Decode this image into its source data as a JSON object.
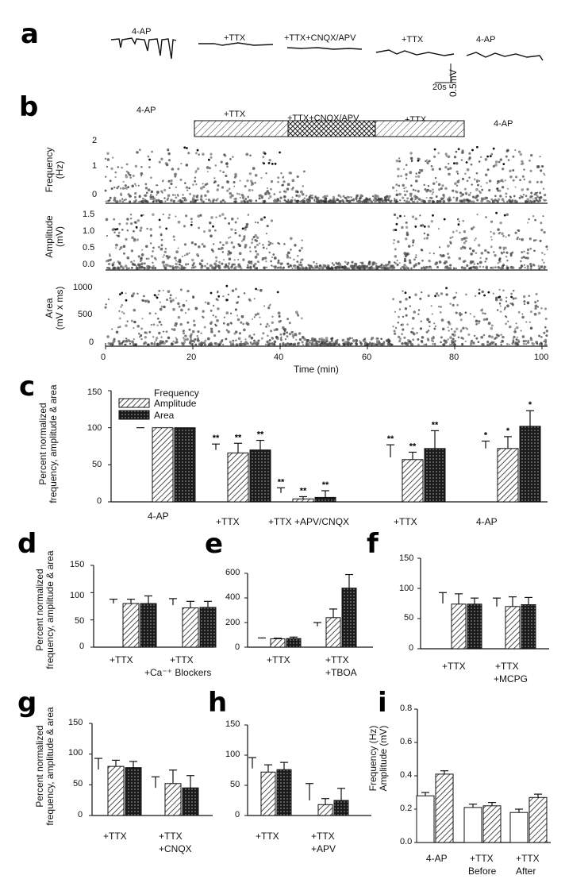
{
  "panels": [
    "a",
    "b",
    "c",
    "d",
    "e",
    "f",
    "g",
    "h",
    "i"
  ],
  "a": {
    "conditions": [
      "4-AP",
      "+TTX",
      "+TTX+CNQX/APV",
      "+TTX",
      "4-AP"
    ],
    "scale_y": "0.5mV",
    "scale_x": "20s"
  },
  "b": {
    "conditions": [
      "4-AP",
      "+TTX",
      "+TTX+CNQX/APV",
      "+TTX",
      "4-AP"
    ],
    "freq_label": "Frequency",
    "freq_unit": "(Hz)",
    "freq_ticks": [
      "2",
      "1",
      "0"
    ],
    "amp_label": "Amplitude",
    "amp_unit": "(mV)",
    "amp_ticks": [
      "1.5",
      "1.0",
      "0.5",
      "0.0"
    ],
    "area_label": "Area",
    "area_unit": "(mV x ms)",
    "area_ticks": [
      "1000",
      "500",
      "0"
    ],
    "xlabel": "Time (min)",
    "xticks": [
      "0",
      "20",
      "40",
      "60",
      "80",
      "100"
    ]
  },
  "c": {
    "ylabel1": "Percent normalized",
    "ylabel2": "frequency, amplitude & area",
    "yticks": [
      "150",
      "100",
      "50",
      "0"
    ],
    "legend": [
      "Frequency",
      "Amplitude",
      "Area"
    ],
    "categories": [
      "4-AP",
      "+TTX",
      "+TTX +APV/CNQX",
      "+TTX",
      "4-AP"
    ],
    "sig": [
      [
        "",
        "",
        ""
      ],
      [
        "**",
        "**",
        "**"
      ],
      [
        "**",
        "**",
        "**"
      ],
      [
        "**",
        "**",
        "**"
      ],
      [
        "*",
        "*",
        "*"
      ]
    ]
  },
  "d": {
    "ylabel1": "Percent normalized",
    "ylabel2": "frequency, amplitude & area",
    "yticks": [
      "150",
      "100",
      "50",
      "0"
    ],
    "cat1": "+TTX",
    "cat2a": "+TTX",
    "cat2b": "+Ca⁻⁺ Blockers"
  },
  "e": {
    "yticks": [
      "600",
      "400",
      "200",
      "0"
    ],
    "cat1": "+TTX",
    "cat2a": "+TTX",
    "cat2b": "+TBOA"
  },
  "f": {
    "yticks": [
      "150",
      "100",
      "50",
      "0"
    ],
    "cat1": "+TTX",
    "cat2a": "+TTX",
    "cat2b": "+MCPG"
  },
  "g": {
    "ylabel1": "Percent normalized",
    "ylabel2": "frequency, amplitude & area",
    "yticks": [
      "150",
      "100",
      "50",
      "0"
    ],
    "cat1": "+TTX",
    "cat2a": "+TTX",
    "cat2b": "+CNQX"
  },
  "h": {
    "yticks": [
      "150",
      "100",
      "50",
      "0"
    ],
    "cat1": "+TTX",
    "cat2a": "+TTX",
    "cat2b": "+APV"
  },
  "i": {
    "ylabel1": "Frequency (Hz)",
    "ylabel2": "Amplitude (mV)",
    "yticks": [
      "0.8",
      "0.6",
      "0.4",
      "0.2",
      "0.0"
    ],
    "cat1": "4-AP",
    "cat2a": "+TTX",
    "cat2b": "Before",
    "cat3a": "+TTX",
    "cat3b": "After"
  },
  "chart_data": [
    {
      "panel": "c",
      "type": "bar",
      "categories": [
        "4-AP",
        "+TTX",
        "+TTX +APV/CNQX",
        "+TTX",
        "4-AP"
      ],
      "ylim": [
        0,
        150
      ],
      "series": [
        {
          "name": "Frequency",
          "values": [
            100,
            70,
            12,
            60,
            72
          ],
          "errors": [
            0,
            8,
            7,
            17,
            10
          ]
        },
        {
          "name": "Amplitude",
          "values": [
            100,
            66,
            4,
            57,
            72
          ],
          "errors": [
            0,
            13,
            3,
            10,
            16
          ]
        },
        {
          "name": "Area",
          "values": [
            100,
            70,
            6,
            72,
            102
          ],
          "errors": [
            0,
            13,
            9,
            24,
            21
          ]
        }
      ]
    },
    {
      "panel": "d",
      "type": "bar",
      "categories": [
        "+TTX",
        "+TTX +Ca Blockers"
      ],
      "ylim": [
        0,
        150
      ],
      "series": [
        {
          "name": "Frequency",
          "values": [
            80,
            77
          ],
          "errors": [
            8,
            12
          ]
        },
        {
          "name": "Amplitude",
          "values": [
            80,
            72
          ],
          "errors": [
            8,
            12
          ]
        },
        {
          "name": "Area",
          "values": [
            80,
            73
          ],
          "errors": [
            14,
            11
          ]
        }
      ]
    },
    {
      "panel": "e",
      "type": "bar",
      "categories": [
        "+TTX",
        "+TTX +TBOA"
      ],
      "ylim": [
        0,
        600
      ],
      "series": [
        {
          "name": "Frequency",
          "values": [
            70,
            170
          ],
          "errors": [
            5,
            30
          ]
        },
        {
          "name": "Amplitude",
          "values": [
            68,
            240
          ],
          "errors": [
            5,
            70
          ]
        },
        {
          "name": "Area",
          "values": [
            70,
            480
          ],
          "errors": [
            12,
            110
          ]
        }
      ]
    },
    {
      "panel": "f",
      "type": "bar",
      "categories": [
        "+TTX",
        "+TTX +MCPG"
      ],
      "ylim": [
        0,
        150
      ],
      "series": [
        {
          "name": "Frequency",
          "values": [
            75,
            70
          ],
          "errors": [
            18,
            14
          ]
        },
        {
          "name": "Amplitude",
          "values": [
            74,
            70
          ],
          "errors": [
            17,
            16
          ]
        },
        {
          "name": "Area",
          "values": [
            74,
            73
          ],
          "errors": [
            10,
            12
          ]
        }
      ]
    },
    {
      "panel": "g",
      "type": "bar",
      "categories": [
        "+TTX",
        "+TTX +CNQX"
      ],
      "ylim": [
        0,
        150
      ],
      "series": [
        {
          "name": "Frequency",
          "values": [
            75,
            45
          ],
          "errors": [
            18,
            18
          ]
        },
        {
          "name": "Amplitude",
          "values": [
            80,
            52
          ],
          "errors": [
            10,
            22
          ]
        },
        {
          "name": "Area",
          "values": [
            78,
            45
          ],
          "errors": [
            10,
            20
          ]
        }
      ]
    },
    {
      "panel": "h",
      "type": "bar",
      "categories": [
        "+TTX",
        "+TTX +APV"
      ],
      "ylim": [
        0,
        150
      ],
      "series": [
        {
          "name": "Frequency",
          "values": [
            78,
            25
          ],
          "errors": [
            18,
            28
          ]
        },
        {
          "name": "Amplitude",
          "values": [
            72,
            18
          ],
          "errors": [
            12,
            10
          ]
        },
        {
          "name": "Area",
          "values": [
            76,
            25
          ],
          "errors": [
            12,
            20
          ]
        }
      ]
    },
    {
      "panel": "i",
      "type": "bar",
      "categories": [
        "4-AP",
        "+TTX Before",
        "+TTX After"
      ],
      "ylim": [
        0,
        0.8
      ],
      "series": [
        {
          "name": "Frequency",
          "values": [
            0.28,
            0.21,
            0.18
          ],
          "errors": [
            0.02,
            0.02,
            0.02
          ]
        },
        {
          "name": "Amplitude",
          "values": [
            0.41,
            0.22,
            0.27
          ],
          "errors": [
            0.02,
            0.02,
            0.02
          ]
        }
      ]
    }
  ]
}
